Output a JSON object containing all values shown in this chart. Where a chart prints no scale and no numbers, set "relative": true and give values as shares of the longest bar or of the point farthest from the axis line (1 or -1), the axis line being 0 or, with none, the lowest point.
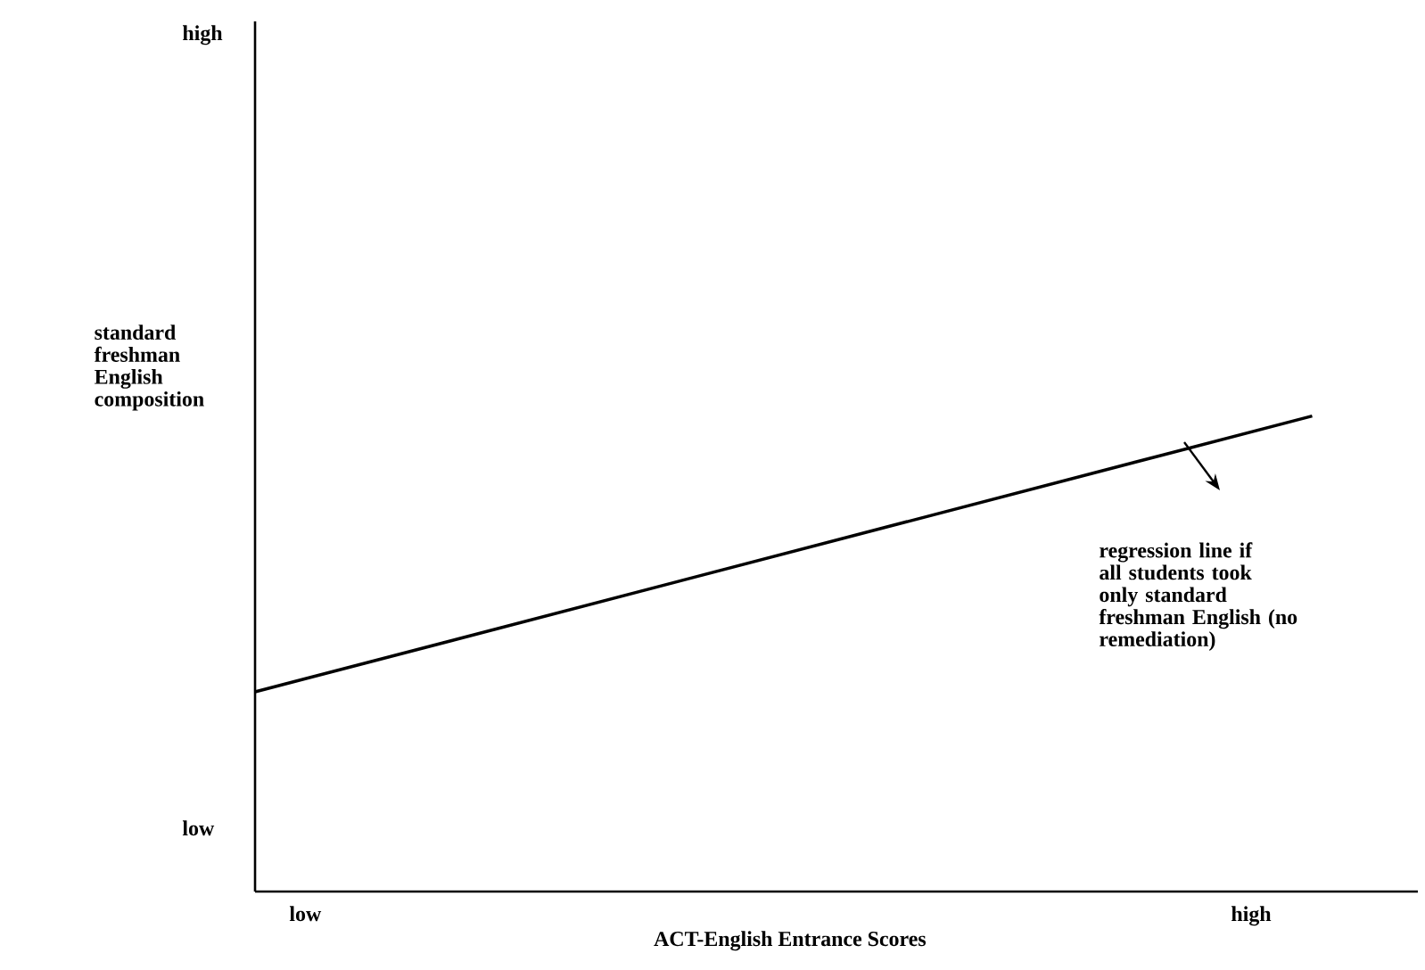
{
  "chart_data": {
    "type": "line",
    "relative": true,
    "categories": [
      null,
      null
    ],
    "values": [
      0.42,
      1
    ],
    "color": "#000000",
    "xlabel": "ACT-English Entrance Scores",
    "ylabel": "standard freshman English composition",
    "annotations": [
      "high",
      "low",
      "low",
      "high",
      "regression line if all students took only standard freshman English (no remediation)"
    ]
  }
}
